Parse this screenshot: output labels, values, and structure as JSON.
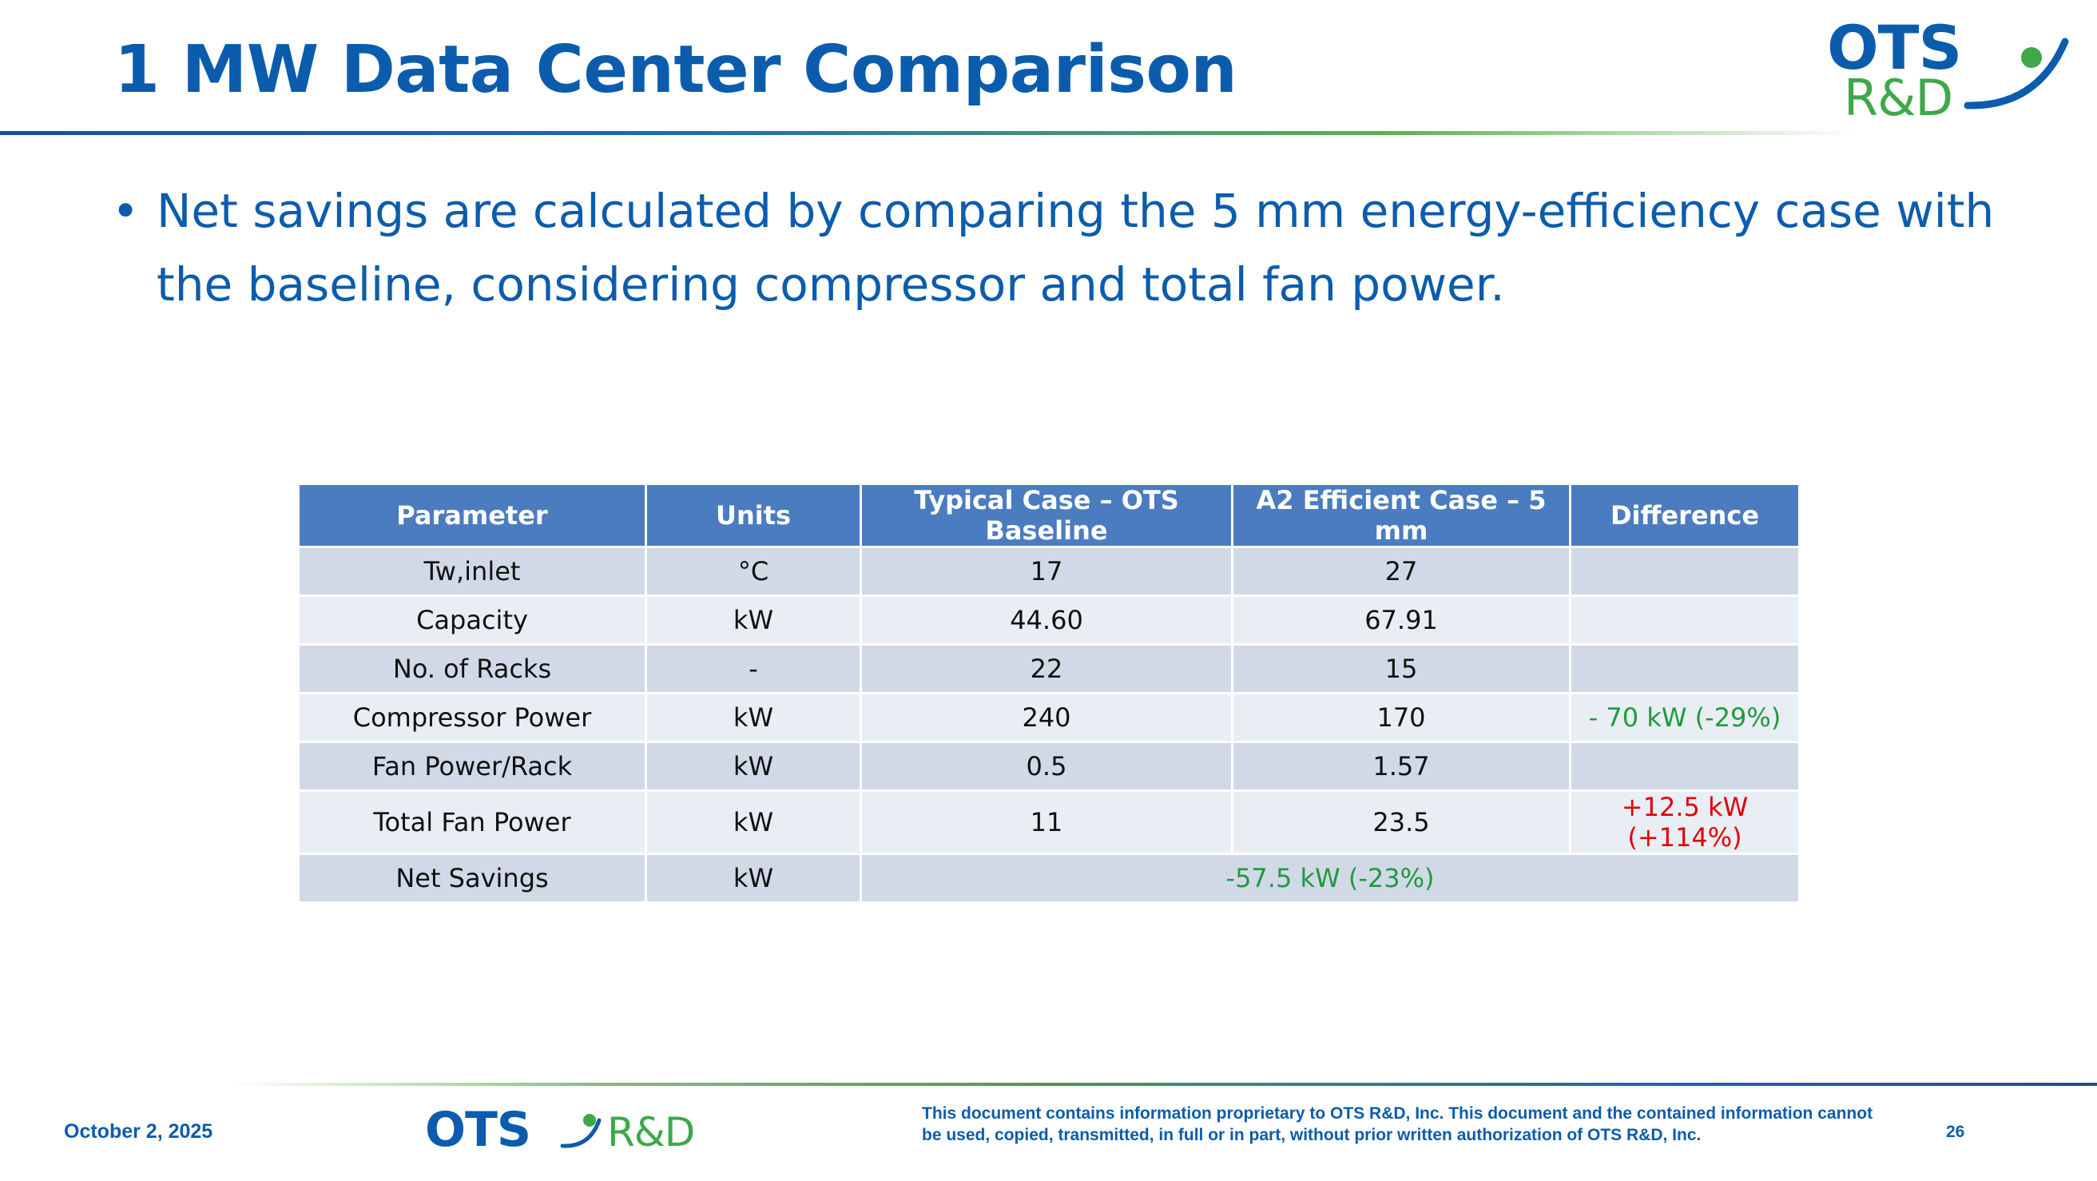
{
  "title": "1 MW Data Center Comparison",
  "logo": {
    "ots": "OTS",
    "rd": "R&D"
  },
  "bullet": "Net savings are calculated by comparing the 5 mm energy-efficiency case with the baseline, considering compressor and total fan power.",
  "table": {
    "headers": [
      "Parameter",
      "Units",
      "Typical Case – OTS Baseline",
      "A2 Efficient Case – 5 mm",
      "Difference"
    ],
    "rows": [
      {
        "parameter": "Tw,inlet",
        "units": "°C",
        "typical": "17",
        "efficient": "27",
        "difference": ""
      },
      {
        "parameter": "Capacity",
        "units": "kW",
        "typical": "44.60",
        "efficient": "67.91",
        "difference": ""
      },
      {
        "parameter": "No. of Racks",
        "units": "-",
        "typical": "22",
        "efficient": "15",
        "difference": ""
      },
      {
        "parameter": "Compressor Power",
        "units": "kW",
        "typical": "240",
        "efficient": "170",
        "difference": "- 70 kW (-29%)"
      },
      {
        "parameter": "Fan Power/Rack",
        "units": "kW",
        "typical": "0.5",
        "efficient": "1.57",
        "difference": ""
      },
      {
        "parameter": "Total Fan Power",
        "units": "kW",
        "typical": "11",
        "efficient": "23.5",
        "difference": "+12.5 kW (+114%)"
      }
    ],
    "net": {
      "parameter": "Net Savings",
      "units": "kW",
      "value": "-57.5 kW (-23%)"
    }
  },
  "colors": {
    "primary_blue": "#0b5cad",
    "header_blue": "#4b7cbf",
    "saving_green": "#1f9b3e",
    "increase_red": "#e00000"
  },
  "footer": {
    "date": "October 2, 2025",
    "notice": "This document contains information proprietary to OTS R&D, Inc. This document and the contained information cannot be used, copied, transmitted, in full or in part, without prior written authorization of OTS R&D, Inc.",
    "page": "26"
  }
}
